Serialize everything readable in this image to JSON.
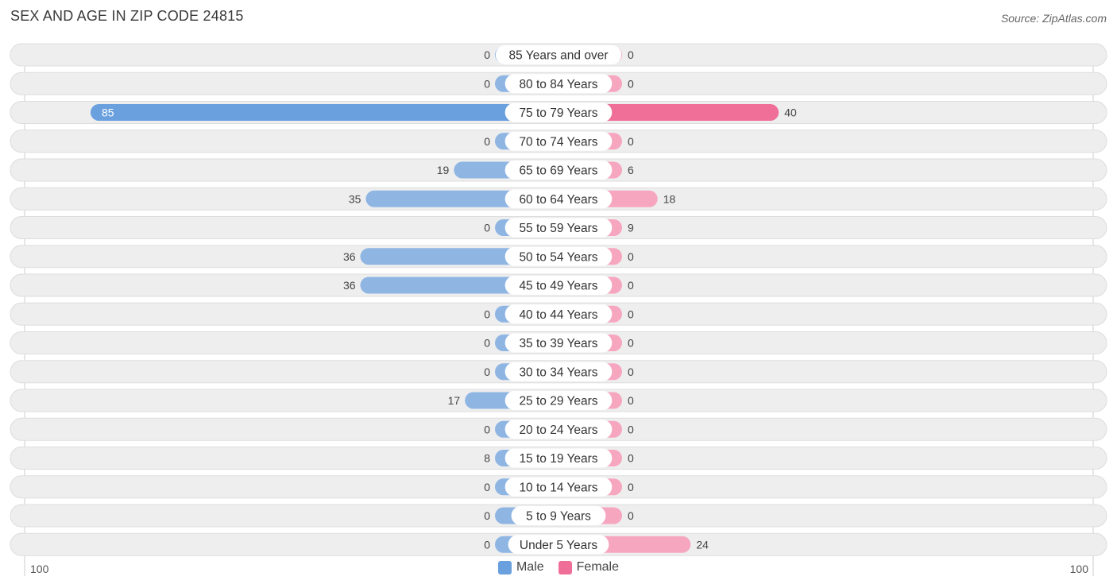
{
  "title": "SEX AND AGE IN ZIP CODE 24815",
  "source": "Source: ZipAtlas.com",
  "colors": {
    "male": "#8fb5e3",
    "male_strong": "#6aa0de",
    "female": "#f7a6c0",
    "female_strong": "#f06f98",
    "row_bg": "#eeeeee",
    "row_border": "#dddddd"
  },
  "legend": {
    "male": "Male",
    "female": "Female"
  },
  "axis": {
    "left_label": "100",
    "right_label": "100"
  },
  "chart_data": {
    "type": "bar",
    "orientation": "horizontal-diverging",
    "title": "SEX AND AGE IN ZIP CODE 24815",
    "xlim": [
      -100,
      100
    ],
    "legend_position": "bottom-center",
    "categories": [
      "85 Years and over",
      "80 to 84 Years",
      "75 to 79 Years",
      "70 to 74 Years",
      "65 to 69 Years",
      "60 to 64 Years",
      "55 to 59 Years",
      "50 to 54 Years",
      "45 to 49 Years",
      "40 to 44 Years",
      "35 to 39 Years",
      "30 to 34 Years",
      "25 to 29 Years",
      "20 to 24 Years",
      "15 to 19 Years",
      "10 to 14 Years",
      "5 to 9 Years",
      "Under 5 Years"
    ],
    "series": [
      {
        "name": "Male",
        "values": [
          0,
          0,
          85,
          0,
          19,
          35,
          0,
          36,
          36,
          0,
          0,
          0,
          17,
          0,
          8,
          0,
          0,
          0
        ]
      },
      {
        "name": "Female",
        "values": [
          0,
          0,
          40,
          0,
          6,
          18,
          9,
          0,
          0,
          0,
          0,
          0,
          0,
          0,
          0,
          0,
          0,
          24
        ]
      }
    ]
  }
}
